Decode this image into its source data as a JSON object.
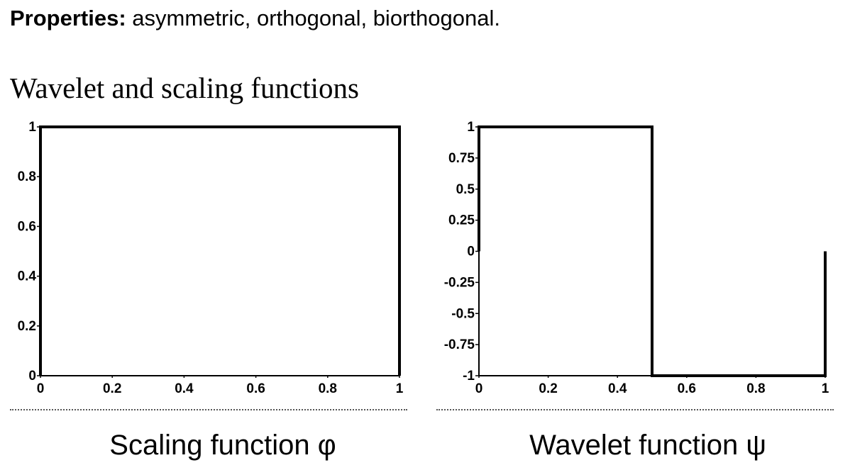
{
  "properties": {
    "label": "Properties:",
    "text": " asymmetric, orthogonal, biorthogonal."
  },
  "section_title": "Wavelet and scaling functions",
  "captions": {
    "left": "Scaling function φ",
    "right": "Wavelet function ψ"
  },
  "colors": {
    "line": "#000000",
    "axis": "#000000",
    "divider": "#555555"
  },
  "chart_data": [
    {
      "type": "line",
      "title": "",
      "xlabel": "",
      "ylabel": "",
      "xlim": [
        0,
        1
      ],
      "ylim": [
        0,
        1
      ],
      "x_ticks": [
        0,
        0.2,
        0.4,
        0.6,
        0.8,
        1
      ],
      "x_tick_labels": [
        "0",
        "0.2",
        "0.4",
        "0.6",
        "0.8",
        "1"
      ],
      "y_ticks": [
        0,
        0.2,
        0.4,
        0.6,
        0.8,
        1
      ],
      "y_tick_labels": [
        "0",
        "0.2",
        "0.4",
        "0.6",
        "0.8",
        "1"
      ],
      "grid": false,
      "series": [
        {
          "x": [
            0,
            0,
            1,
            1
          ],
          "y": [
            0,
            1,
            1,
            0
          ]
        }
      ]
    },
    {
      "type": "line",
      "title": "",
      "xlabel": "",
      "ylabel": "",
      "xlim": [
        0,
        1
      ],
      "ylim": [
        -1,
        1
      ],
      "x_ticks": [
        0,
        0.2,
        0.4,
        0.6,
        0.8,
        1
      ],
      "x_tick_labels": [
        "0",
        "0.2",
        "0.4",
        "0.6",
        "0.8",
        "1"
      ],
      "y_ticks": [
        1,
        0.75,
        0.5,
        0.25,
        0,
        -0.25,
        -0.5,
        -0.75,
        -1
      ],
      "y_tick_labels": [
        "1",
        "0.75",
        "0.5",
        "0.25",
        "0",
        "-0.25",
        "-0.5",
        "-0.75",
        "-1"
      ],
      "grid": false,
      "series": [
        {
          "x": [
            0,
            0,
            0.5,
            0.5,
            1,
            1
          ],
          "y": [
            0,
            1,
            1,
            -1,
            -1,
            0
          ]
        }
      ]
    }
  ]
}
